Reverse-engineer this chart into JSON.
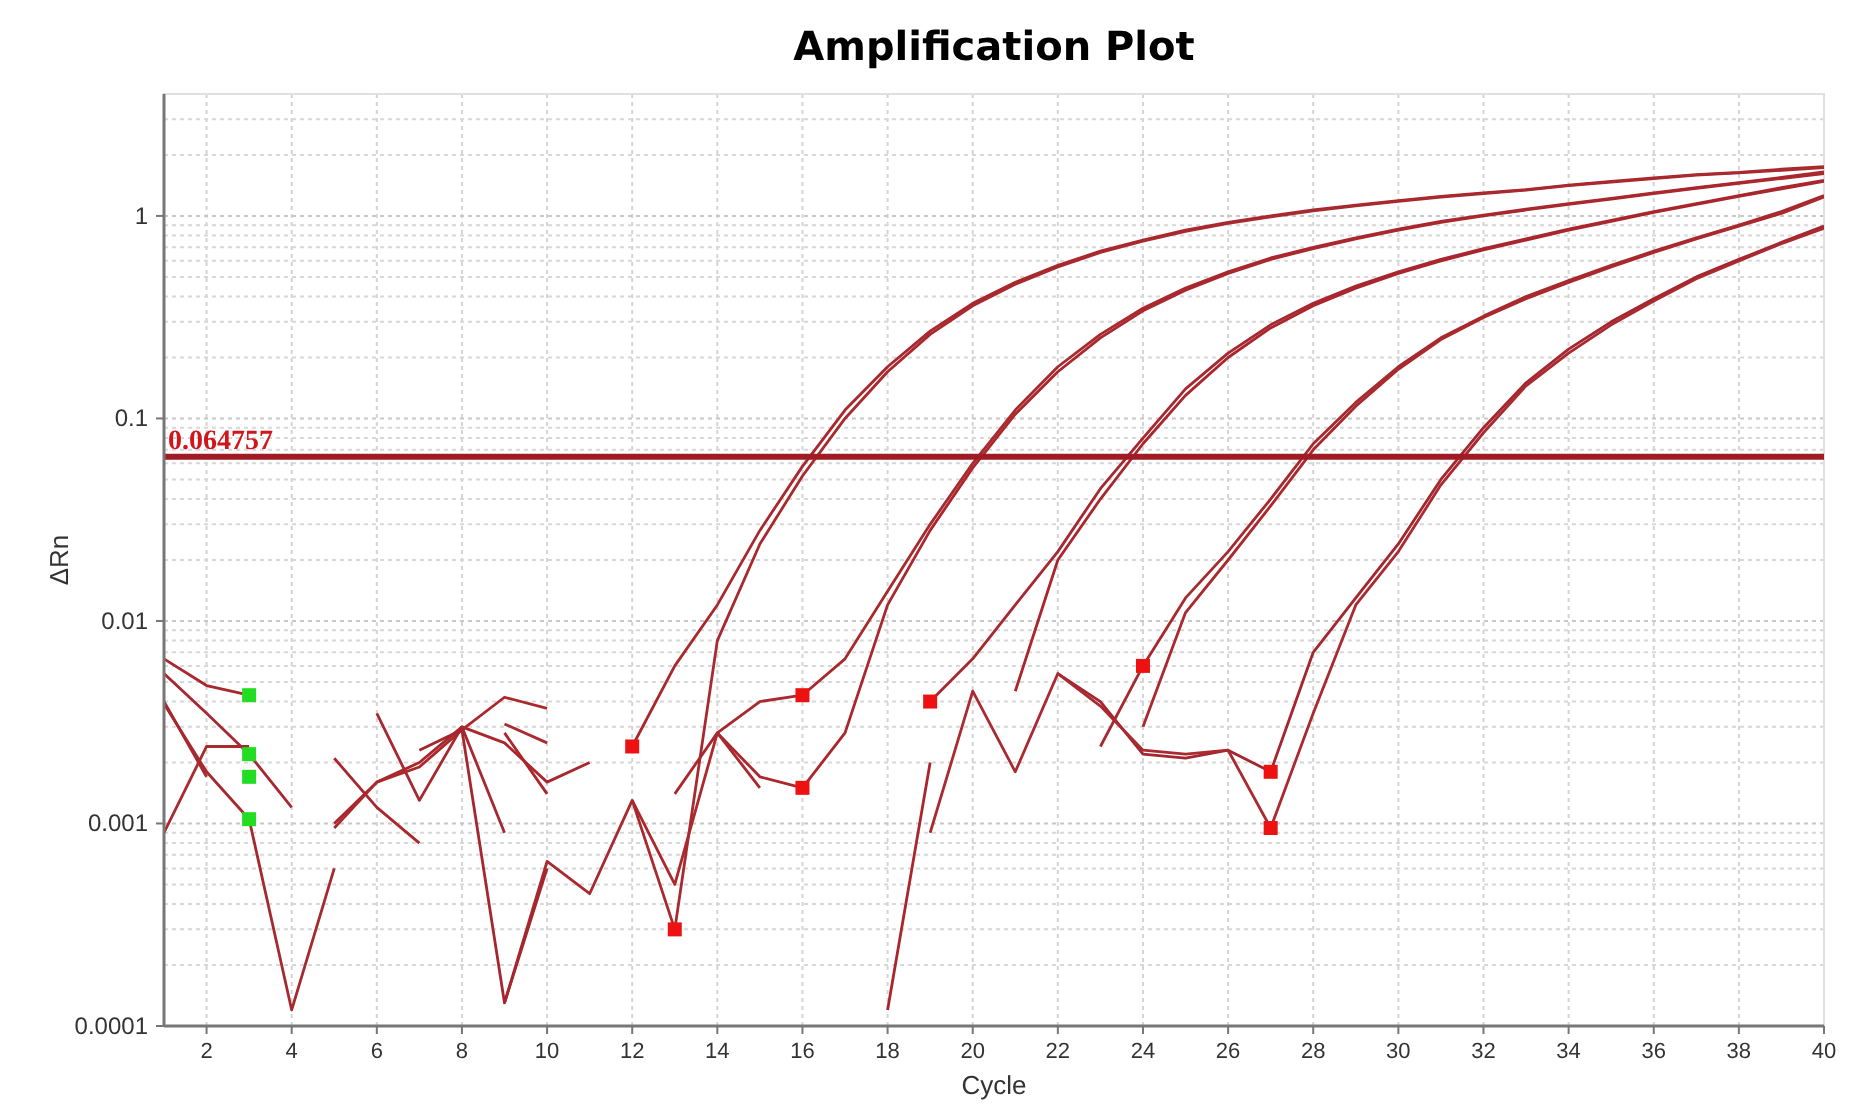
{
  "chart_data": {
    "type": "line",
    "title": "Amplification Plot",
    "xlabel": "Cycle",
    "ylabel": "ΔRn",
    "xlim": [
      1,
      40
    ],
    "xticks": [
      2,
      4,
      6,
      8,
      10,
      12,
      14,
      16,
      18,
      20,
      22,
      24,
      26,
      28,
      30,
      32,
      34,
      36,
      38,
      40
    ],
    "ylim": [
      0.0001,
      4
    ],
    "yticks": [
      0.0001,
      0.001,
      0.01,
      0.1,
      1
    ],
    "log": "y",
    "grid": true,
    "marker": "none",
    "ref_lines": [
      {
        "axis": "y",
        "value": 0.064757,
        "label": "0.064757",
        "color": "#a01c24"
      }
    ],
    "series": [
      {
        "color": "#a8282e",
        "x": [
          1,
          2,
          3,
          4,
          12,
          13,
          14,
          15,
          16,
          17,
          18,
          19,
          20,
          21,
          22,
          23,
          24,
          25,
          26,
          27,
          28,
          29,
          30,
          31,
          32,
          33,
          34,
          35,
          36,
          37,
          38,
          39,
          40
        ],
        "values": [
          0.0065,
          0.0048,
          0.0043,
          null,
          0.0024,
          0.006,
          0.012,
          0.028,
          0.058,
          0.11,
          0.18,
          0.27,
          0.37,
          0.47,
          0.57,
          0.67,
          0.76,
          0.85,
          0.93,
          1.0,
          1.07,
          1.13,
          1.19,
          1.25,
          1.3,
          1.35,
          1.42,
          1.48,
          1.54,
          1.6,
          1.64,
          1.7,
          1.75
        ]
      },
      {
        "color": "#a8292e",
        "x": [
          1,
          2,
          3,
          4,
          9,
          10,
          11,
          12,
          13,
          14,
          15,
          16,
          17,
          18,
          19,
          20,
          21,
          22,
          23,
          24,
          25,
          26,
          27,
          28,
          29,
          30,
          31,
          32,
          33,
          34,
          35,
          36,
          37,
          38,
          39,
          40
        ],
        "values": [
          0.0009,
          0.0024,
          0.0024,
          null,
          0.00013,
          0.00065,
          0.00045,
          0.0013,
          0.0003,
          0.008,
          0.024,
          0.052,
          0.1,
          0.17,
          0.26,
          0.36,
          0.46,
          0.56,
          0.66,
          0.75,
          0.84,
          0.92,
          0.99,
          1.06,
          1.12,
          1.18,
          1.24,
          1.29,
          1.34,
          1.41,
          1.47,
          1.53,
          1.59,
          1.63,
          1.68,
          1.73
        ]
      },
      {
        "color": "#a72a2e",
        "x": [
          1,
          2,
          3,
          14,
          15,
          16,
          17,
          18,
          19,
          20,
          21,
          22,
          23,
          24,
          25,
          26,
          27,
          28,
          29,
          30,
          31,
          32,
          33,
          34,
          35,
          36,
          37,
          38,
          39,
          40
        ],
        "values": [
          0.004,
          0.0017,
          null,
          0.0028,
          0.004,
          0.0043,
          0.0065,
          0.014,
          0.03,
          0.06,
          0.11,
          0.18,
          0.26,
          0.35,
          0.44,
          0.53,
          0.62,
          0.7,
          0.78,
          0.86,
          0.94,
          1.01,
          1.08,
          1.15,
          1.22,
          1.3,
          1.38,
          1.46,
          1.55,
          1.65
        ]
      },
      {
        "color": "#a9272d",
        "x": [
          5,
          6,
          7,
          8,
          9,
          10,
          11,
          12,
          13,
          14,
          15,
          16,
          17,
          18,
          19,
          20,
          21,
          22,
          23,
          24,
          25,
          26,
          27,
          28,
          29,
          30,
          31,
          32,
          33,
          34,
          35,
          36,
          37,
          38,
          39,
          40
        ],
        "values": [
          0.001,
          0.0016,
          0.002,
          0.003,
          0.0025,
          0.0016,
          0.002,
          null,
          0.0014,
          0.0028,
          0.0017,
          0.0015,
          0.0028,
          0.012,
          0.028,
          0.057,
          0.105,
          0.17,
          0.25,
          0.34,
          0.43,
          0.52,
          0.61,
          0.69,
          0.77,
          0.85,
          0.93,
          1.0,
          1.07,
          1.14,
          1.21,
          1.29,
          1.37,
          1.45,
          1.53,
          1.62
        ]
      },
      {
        "color": "#a62830",
        "x": [
          1,
          2,
          3,
          4,
          5,
          6,
          7,
          8,
          9,
          10,
          19,
          20,
          21,
          22,
          23,
          24,
          25,
          26,
          27,
          28,
          29,
          30,
          31,
          32,
          33,
          34,
          35,
          36,
          37,
          38,
          39,
          40
        ],
        "values": [
          0.0055,
          0.0035,
          0.0022,
          0.0012,
          null,
          0.0035,
          0.0013,
          0.003,
          0.0009,
          null,
          0.004,
          0.0065,
          0.012,
          0.022,
          0.045,
          0.08,
          0.14,
          0.21,
          0.29,
          0.37,
          0.45,
          0.53,
          0.61,
          0.69,
          0.77,
          0.86,
          0.95,
          1.05,
          1.15,
          1.26,
          1.38,
          1.5
        ]
      },
      {
        "color": "#aa262c",
        "x": [
          5,
          6,
          7,
          8,
          9,
          10,
          11,
          18,
          19,
          20,
          21,
          22,
          23,
          24,
          25,
          26,
          27,
          28,
          29,
          30,
          31,
          32,
          33,
          34,
          35,
          36,
          37,
          38,
          39,
          40
        ],
        "values": [
          0.0021,
          0.0012,
          0.0008,
          null,
          0.0028,
          0.0014,
          null,
          0.00012,
          0.002,
          null,
          0.0045,
          0.02,
          0.04,
          0.075,
          0.13,
          0.2,
          0.28,
          0.36,
          0.44,
          0.52,
          0.6,
          0.68,
          0.76,
          0.85,
          0.94,
          1.04,
          1.14,
          1.25,
          1.36,
          1.48
        ]
      },
      {
        "color": "#a52a2f",
        "x": [
          1,
          2,
          3,
          4,
          5,
          6,
          23,
          24,
          25,
          26,
          27,
          28,
          29,
          30,
          31,
          32,
          33,
          34,
          35,
          36,
          37,
          38,
          39,
          40
        ],
        "values": [
          0.0039,
          0.0018,
          0.00105,
          0.00012,
          0.0006,
          null,
          0.0024,
          0.006,
          0.013,
          0.022,
          0.04,
          0.075,
          0.12,
          0.18,
          0.25,
          0.32,
          0.4,
          0.48,
          0.57,
          0.67,
          0.78,
          0.9,
          1.05,
          1.26
        ]
      },
      {
        "color": "#ab292d",
        "x": [
          5,
          6,
          7,
          8,
          9,
          10,
          11,
          12,
          13,
          14,
          15,
          16,
          24,
          25,
          26,
          27,
          28,
          29,
          30,
          31,
          32,
          33,
          34,
          35,
          36,
          37,
          38,
          39,
          40
        ],
        "values": [
          0.00095,
          0.0016,
          0.0019,
          0.0029,
          0.0042,
          0.0037,
          null,
          0.0013,
          0.0005,
          0.0028,
          0.0015,
          null,
          0.003,
          0.011,
          0.02,
          0.037,
          0.07,
          0.115,
          0.175,
          0.245,
          0.315,
          0.39,
          0.47,
          0.56,
          0.66,
          0.77,
          0.89,
          1.03,
          1.24
        ]
      },
      {
        "color": "#a4262e",
        "x": [
          7,
          8,
          9,
          10,
          11,
          22,
          23,
          24,
          25,
          26,
          27,
          28,
          29,
          30,
          31,
          32,
          33,
          34,
          35,
          36,
          37,
          38,
          39,
          40
        ],
        "values": [
          0.0023,
          0.0029,
          0.00013,
          0.0006,
          null,
          0.0055,
          0.004,
          0.0022,
          0.0021,
          0.0023,
          0.0018,
          0.007,
          0.013,
          0.024,
          0.05,
          0.09,
          0.15,
          0.22,
          0.3,
          0.39,
          0.5,
          0.61,
          0.74,
          0.89
        ]
      },
      {
        "color": "#a92a30",
        "x": [
          9,
          10,
          11,
          19,
          20,
          21,
          22,
          23,
          24,
          25,
          26,
          27,
          28,
          29,
          30,
          31,
          32,
          33,
          34,
          35,
          36,
          37,
          38,
          39,
          40
        ],
        "values": [
          0.0031,
          0.0025,
          null,
          0.0009,
          0.0045,
          0.0018,
          0.0055,
          0.0038,
          0.0023,
          0.0022,
          0.0023,
          0.00095,
          0.0035,
          0.012,
          0.022,
          0.047,
          0.085,
          0.145,
          0.21,
          0.29,
          0.38,
          0.49,
          0.6,
          0.73,
          0.87
        ]
      },
      {
        "type": "scatter",
        "marker": "square",
        "color": "#22dd22",
        "x": [
          3,
          3,
          3,
          3
        ],
        "values": [
          0.0043,
          0.0022,
          0.0017,
          0.00105
        ]
      },
      {
        "type": "scatter",
        "marker": "square",
        "color": "#ee1111",
        "x": [
          12,
          13,
          16,
          16,
          19,
          24,
          27,
          27
        ],
        "values": [
          0.0024,
          0.0003,
          0.0043,
          0.0015,
          0.004,
          0.006,
          0.0018,
          0.00095
        ]
      }
    ]
  }
}
